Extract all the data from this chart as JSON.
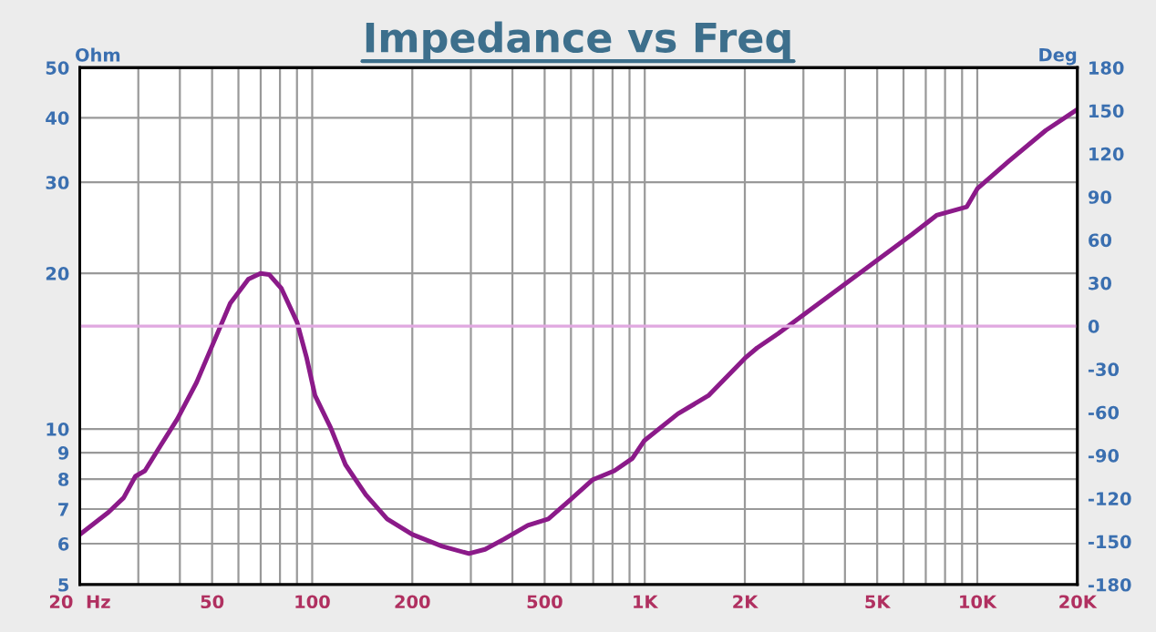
{
  "chart_data": {
    "type": "line",
    "title": "Impedance vs Freq",
    "ylabel": "Ohm",
    "y2label": "Deg",
    "x": [
      20,
      24.4,
      27.1,
      29.4,
      31.4,
      34.9,
      39.3,
      44.9,
      49.6,
      56.7,
      64.3,
      69.9,
      74.2,
      80.8,
      90,
      96.3,
      102,
      113.7,
      125.9,
      145,
      168,
      200,
      246,
      296,
      331,
      377,
      445,
      513,
      598,
      698,
      810,
      918,
      998,
      1258,
      1554,
      2000,
      2178,
      2520,
      3840,
      4945,
      6370,
      7540,
      9300,
      10020,
      12470,
      16060,
      20000
    ],
    "series": [
      {
        "color": "#8b1a89",
        "values": [
          6.25,
          6.9,
          7.36,
          8.1,
          8.3,
          9.26,
          10.45,
          12.3,
          14.3,
          17.5,
          19.5,
          20.0,
          19.9,
          18.7,
          16.1,
          13.7,
          11.6,
          10.05,
          8.53,
          7.46,
          6.7,
          6.25,
          5.93,
          5.74,
          5.85,
          6.12,
          6.51,
          6.7,
          7.3,
          7.98,
          8.3,
          8.77,
          9.5,
          10.7,
          11.6,
          13.7,
          14.35,
          15.3,
          18.7,
          21.1,
          23.8,
          25.9,
          26.9,
          29.2,
          33.0,
          37.8,
          41.5
        ]
      }
    ],
    "log": "xy",
    "xlim": [
      20,
      20000
    ],
    "xticks": [
      {
        "value": 20,
        "label": "20  Hz"
      },
      {
        "value": 30,
        "label": null
      },
      {
        "value": 40,
        "label": null
      },
      50,
      {
        "value": 60,
        "label": null
      },
      {
        "value": 70,
        "label": null
      },
      {
        "value": 80,
        "label": null
      },
      {
        "value": 90,
        "label": null
      },
      100,
      200,
      {
        "value": 300,
        "label": null
      },
      {
        "value": 400,
        "label": null
      },
      500,
      {
        "value": 600,
        "label": null
      },
      {
        "value": 700,
        "label": null
      },
      {
        "value": 800,
        "label": null
      },
      {
        "value": 900,
        "label": null
      },
      {
        "value": 1000,
        "label": "1K"
      },
      {
        "value": 2000,
        "label": "2K"
      },
      {
        "value": 3000,
        "label": null
      },
      {
        "value": 4000,
        "label": null
      },
      {
        "value": 5000,
        "label": "5K"
      },
      {
        "value": 6000,
        "label": null
      },
      {
        "value": 7000,
        "label": null
      },
      {
        "value": 8000,
        "label": null
      },
      {
        "value": 9000,
        "label": null
      },
      {
        "value": 10000,
        "label": "10K"
      },
      {
        "value": 20000,
        "label": "20K"
      }
    ],
    "ylim": [
      5,
      50
    ],
    "yticks": [
      5,
      6,
      7,
      8,
      9,
      10,
      20,
      30,
      40,
      50
    ],
    "y2lim": [
      -180,
      180
    ],
    "y2ticks": [
      -180,
      -150,
      -120,
      -90,
      -60,
      -30,
      0,
      30,
      60,
      90,
      120,
      150,
      180
    ],
    "ref_lines": [
      {
        "axis": "y2",
        "value": 0,
        "color": "#e0a8e0"
      }
    ],
    "grid": true,
    "legend": false
  }
}
